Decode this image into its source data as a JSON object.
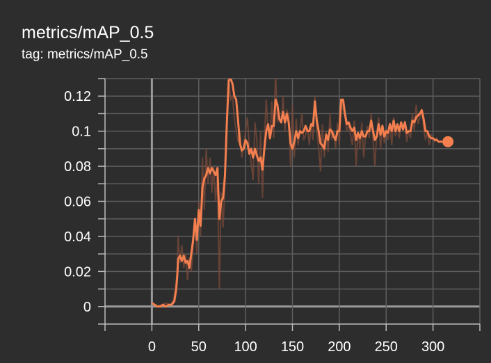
{
  "card": {
    "title": "metrics/mAP_0.5",
    "subtitle": "tag: metrics/mAP_0.5"
  },
  "colors": {
    "background": "#2d2d2d",
    "grid": "#5e5e5e",
    "zero_line": "#9a9a9a",
    "smoothed_line": "#f47f4f",
    "raw_line": "#7a4a3a"
  },
  "chart_data": {
    "type": "line",
    "title": "metrics/mAP_0.5",
    "subtitle": "tag: metrics/mAP_0.5",
    "xlabel": "",
    "ylabel": "",
    "xlim": [
      -50,
      350
    ],
    "ylim": [
      -0.01,
      0.13
    ],
    "x_ticks": [
      0,
      50,
      100,
      150,
      200,
      250,
      300
    ],
    "x_tick_labels": [
      "0",
      "50",
      "100",
      "150",
      "200",
      "250",
      "300"
    ],
    "y_ticks": [
      0,
      0.02,
      0.04,
      0.06,
      0.08,
      0.1,
      0.12
    ],
    "y_tick_labels": [
      "0",
      "0.02",
      "0.04",
      "0.06",
      "0.08",
      "0.1",
      "0.12"
    ],
    "grid": true,
    "series": [
      {
        "role": "raw",
        "points": [
          [
            0,
            0.002
          ],
          [
            5,
            0.0
          ],
          [
            10,
            0.001
          ],
          [
            15,
            0.002
          ],
          [
            20,
            0.001
          ],
          [
            23,
            0.004
          ],
          [
            25,
            0.01
          ],
          [
            27,
            0.02
          ],
          [
            28,
            0.04
          ],
          [
            30,
            0.025
          ],
          [
            32,
            0.035
          ],
          [
            34,
            0.022
          ],
          [
            36,
            0.03
          ],
          [
            38,
            0.015
          ],
          [
            40,
            0.028
          ],
          [
            42,
            0.02
          ],
          [
            44,
            0.034
          ],
          [
            46,
            0.05
          ],
          [
            48,
            0.03
          ],
          [
            50,
            0.06
          ],
          [
            52,
            0.04
          ],
          [
            54,
            0.085
          ],
          [
            56,
            0.055
          ],
          [
            58,
            0.09
          ],
          [
            60,
            0.07
          ],
          [
            62,
            0.085
          ],
          [
            64,
            0.065
          ],
          [
            66,
            0.08
          ],
          [
            68,
            0.06
          ],
          [
            70,
            0.075
          ],
          [
            72,
            0.01
          ],
          [
            74,
            0.065
          ],
          [
            76,
            0.045
          ],
          [
            78,
            0.07
          ],
          [
            80,
            0.11
          ],
          [
            82,
            0.13
          ],
          [
            84,
            0.118
          ],
          [
            86,
            0.12
          ],
          [
            88,
            0.107
          ],
          [
            90,
            0.1
          ],
          [
            92,
            0.094
          ],
          [
            94,
            0.1
          ],
          [
            96,
            0.085
          ],
          [
            98,
            0.093
          ],
          [
            100,
            0.1
          ],
          [
            102,
            0.108
          ],
          [
            104,
            0.09
          ],
          [
            106,
            0.082
          ],
          [
            108,
            0.072
          ],
          [
            110,
            0.105
          ],
          [
            112,
            0.095
          ],
          [
            114,
            0.07
          ],
          [
            116,
            0.1
          ],
          [
            118,
            0.062
          ],
          [
            120,
            0.095
          ],
          [
            122,
            0.118
          ],
          [
            124,
            0.1
          ],
          [
            126,
            0.095
          ],
          [
            128,
            0.117
          ],
          [
            130,
            0.096
          ],
          [
            132,
            0.135
          ],
          [
            134,
            0.105
          ],
          [
            136,
            0.11
          ],
          [
            138,
            0.105
          ],
          [
            140,
            0.12
          ],
          [
            142,
            0.1
          ],
          [
            144,
            0.112
          ],
          [
            146,
            0.11
          ],
          [
            148,
            0.08
          ],
          [
            150,
            0.115
          ],
          [
            152,
            0.085
          ],
          [
            154,
            0.107
          ],
          [
            156,
            0.092
          ],
          [
            158,
            0.1
          ],
          [
            160,
            0.11
          ],
          [
            162,
            0.095
          ],
          [
            164,
            0.098
          ],
          [
            166,
            0.102
          ],
          [
            168,
            0.092
          ],
          [
            170,
            0.105
          ],
          [
            172,
            0.095
          ],
          [
            174,
            0.12
          ],
          [
            176,
            0.1
          ],
          [
            178,
            0.09
          ],
          [
            180,
            0.077
          ],
          [
            182,
            0.104
          ],
          [
            184,
            0.085
          ],
          [
            186,
            0.1
          ],
          [
            188,
            0.088
          ],
          [
            190,
            0.11
          ],
          [
            192,
            0.095
          ],
          [
            194,
            0.1
          ],
          [
            196,
            0.09
          ],
          [
            198,
            0.105
          ],
          [
            200,
            0.092
          ],
          [
            202,
            0.118
          ],
          [
            204,
            0.112
          ],
          [
            206,
            0.108
          ],
          [
            208,
            0.1
          ],
          [
            210,
            0.104
          ],
          [
            212,
            0.098
          ],
          [
            214,
            0.092
          ],
          [
            216,
            0.106
          ],
          [
            218,
            0.08
          ],
          [
            220,
            0.1
          ],
          [
            222,
            0.09
          ],
          [
            224,
            0.105
          ],
          [
            226,
            0.085
          ],
          [
            228,
            0.097
          ],
          [
            230,
            0.103
          ],
          [
            232,
            0.096
          ],
          [
            234,
            0.11
          ],
          [
            236,
            0.095
          ],
          [
            238,
            0.08
          ],
          [
            240,
            0.1
          ],
          [
            242,
            0.108
          ],
          [
            244,
            0.09
          ],
          [
            246,
            0.104
          ],
          [
            248,
            0.093
          ],
          [
            250,
            0.1
          ],
          [
            252,
            0.095
          ],
          [
            254,
            0.105
          ],
          [
            256,
            0.092
          ],
          [
            258,
            0.108
          ],
          [
            260,
            0.097
          ],
          [
            262,
            0.103
          ],
          [
            264,
            0.096
          ],
          [
            266,
            0.105
          ],
          [
            268,
            0.1
          ],
          [
            270,
            0.106
          ],
          [
            272,
            0.094
          ],
          [
            274,
            0.1
          ],
          [
            276,
            0.096
          ],
          [
            278,
            0.11
          ],
          [
            280,
            0.1
          ],
          [
            282,
            0.115
          ],
          [
            284,
            0.104
          ],
          [
            286,
            0.108
          ],
          [
            288,
            0.112
          ],
          [
            290,
            0.102
          ],
          [
            292,
            0.095
          ],
          [
            294,
            0.1
          ],
          [
            296,
            0.092
          ],
          [
            298,
            0.098
          ],
          [
            300,
            0.096
          ],
          [
            302,
            0.094
          ],
          [
            304,
            0.096
          ],
          [
            306,
            0.094
          ],
          [
            308,
            0.094
          ],
          [
            310,
            0.094
          ]
        ]
      },
      {
        "role": "smoothed",
        "points": [
          [
            0,
            0.002
          ],
          [
            3,
            0.001
          ],
          [
            6,
            0.0
          ],
          [
            9,
            0.0
          ],
          [
            12,
            0.001
          ],
          [
            15,
            0.0
          ],
          [
            18,
            0.001
          ],
          [
            21,
            0.001
          ],
          [
            24,
            0.003
          ],
          [
            26,
            0.01
          ],
          [
            27,
            0.017
          ],
          [
            28,
            0.027
          ],
          [
            30,
            0.029
          ],
          [
            32,
            0.026
          ],
          [
            34,
            0.029
          ],
          [
            36,
            0.025
          ],
          [
            38,
            0.026
          ],
          [
            40,
            0.022
          ],
          [
            42,
            0.03
          ],
          [
            44,
            0.038
          ],
          [
            46,
            0.05
          ],
          [
            48,
            0.038
          ],
          [
            50,
            0.055
          ],
          [
            52,
            0.046
          ],
          [
            54,
            0.068
          ],
          [
            56,
            0.073
          ],
          [
            58,
            0.075
          ],
          [
            60,
            0.079
          ],
          [
            62,
            0.076
          ],
          [
            64,
            0.079
          ],
          [
            66,
            0.077
          ],
          [
            68,
            0.075
          ],
          [
            70,
            0.079
          ],
          [
            72,
            0.05
          ],
          [
            74,
            0.06
          ],
          [
            76,
            0.062
          ],
          [
            78,
            0.075
          ],
          [
            80,
            0.105
          ],
          [
            82,
            0.129
          ],
          [
            84,
            0.13
          ],
          [
            86,
            0.127
          ],
          [
            88,
            0.12
          ],
          [
            90,
            0.118
          ],
          [
            92,
            0.106
          ],
          [
            94,
            0.093
          ],
          [
            96,
            0.089
          ],
          [
            98,
            0.09
          ],
          [
            100,
            0.095
          ],
          [
            102,
            0.093
          ],
          [
            104,
            0.087
          ],
          [
            106,
            0.09
          ],
          [
            108,
            0.085
          ],
          [
            110,
            0.09
          ],
          [
            112,
            0.086
          ],
          [
            114,
            0.083
          ],
          [
            116,
            0.085
          ],
          [
            118,
            0.078
          ],
          [
            120,
            0.09
          ],
          [
            122,
            0.1
          ],
          [
            124,
            0.104
          ],
          [
            126,
            0.096
          ],
          [
            128,
            0.103
          ],
          [
            130,
            0.103
          ],
          [
            132,
            0.118
          ],
          [
            134,
            0.115
          ],
          [
            136,
            0.107
          ],
          [
            138,
            0.105
          ],
          [
            140,
            0.111
          ],
          [
            142,
            0.105
          ],
          [
            144,
            0.11
          ],
          [
            146,
            0.105
          ],
          [
            148,
            0.093
          ],
          [
            150,
            0.09
          ],
          [
            152,
            0.094
          ],
          [
            154,
            0.1
          ],
          [
            156,
            0.096
          ],
          [
            158,
            0.1
          ],
          [
            160,
            0.099
          ],
          [
            162,
            0.1
          ],
          [
            164,
            0.103
          ],
          [
            166,
            0.1
          ],
          [
            168,
            0.1
          ],
          [
            170,
            0.104
          ],
          [
            172,
            0.103
          ],
          [
            174,
            0.117
          ],
          [
            176,
            0.106
          ],
          [
            178,
            0.1
          ],
          [
            180,
            0.093
          ],
          [
            182,
            0.092
          ],
          [
            184,
            0.09
          ],
          [
            186,
            0.098
          ],
          [
            188,
            0.095
          ],
          [
            190,
            0.101
          ],
          [
            192,
            0.1
          ],
          [
            194,
            0.097
          ],
          [
            196,
            0.095
          ],
          [
            198,
            0.1
          ],
          [
            200,
            0.1
          ],
          [
            202,
            0.118
          ],
          [
            204,
            0.118
          ],
          [
            206,
            0.11
          ],
          [
            208,
            0.104
          ],
          [
            210,
            0.105
          ],
          [
            212,
            0.102
          ],
          [
            214,
            0.1
          ],
          [
            216,
            0.102
          ],
          [
            218,
            0.095
          ],
          [
            220,
            0.099
          ],
          [
            222,
            0.096
          ],
          [
            224,
            0.1
          ],
          [
            226,
            0.097
          ],
          [
            228,
            0.097
          ],
          [
            230,
            0.1
          ],
          [
            232,
            0.1
          ],
          [
            234,
            0.106
          ],
          [
            236,
            0.1
          ],
          [
            238,
            0.095
          ],
          [
            240,
            0.097
          ],
          [
            242,
            0.104
          ],
          [
            244,
            0.098
          ],
          [
            246,
            0.103
          ],
          [
            248,
            0.097
          ],
          [
            250,
            0.1
          ],
          [
            252,
            0.099
          ],
          [
            254,
            0.104
          ],
          [
            256,
            0.1
          ],
          [
            258,
            0.106
          ],
          [
            260,
            0.1
          ],
          [
            262,
            0.104
          ],
          [
            264,
            0.1
          ],
          [
            266,
            0.105
          ],
          [
            268,
            0.101
          ],
          [
            270,
            0.105
          ],
          [
            272,
            0.099
          ],
          [
            274,
            0.1
          ],
          [
            276,
            0.1
          ],
          [
            278,
            0.106
          ],
          [
            280,
            0.105
          ],
          [
            282,
            0.108
          ],
          [
            284,
            0.109
          ],
          [
            286,
            0.11
          ],
          [
            288,
            0.112
          ],
          [
            290,
            0.107
          ],
          [
            292,
            0.1
          ],
          [
            294,
            0.1
          ],
          [
            296,
            0.097
          ],
          [
            298,
            0.096
          ],
          [
            300,
            0.096
          ],
          [
            302,
            0.095
          ],
          [
            304,
            0.095
          ],
          [
            306,
            0.094
          ],
          [
            308,
            0.094
          ],
          [
            310,
            0.094
          ]
        ]
      }
    ],
    "last_point": [
      310,
      0.094
    ]
  }
}
